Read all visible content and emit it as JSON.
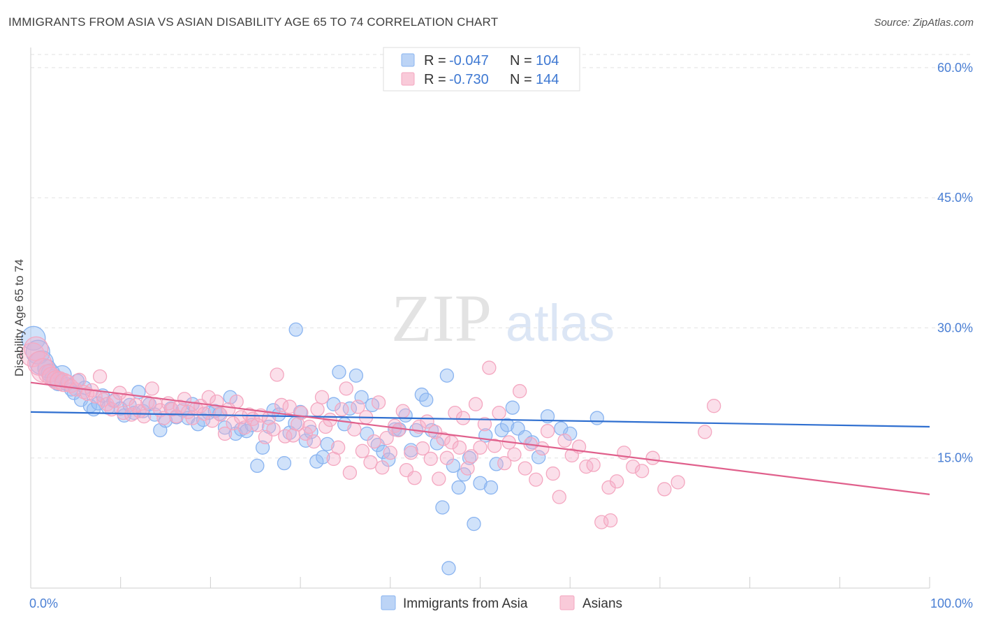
{
  "title": "IMMIGRANTS FROM ASIA VS ASIAN DISABILITY AGE 65 TO 74 CORRELATION CHART",
  "source": "Source: ZipAtlas.com",
  "watermark": {
    "zip": "ZIP",
    "atlas": "atlas"
  },
  "legend": {
    "rows": [
      {
        "r_label": "R =",
        "r_value": "-0.047",
        "n_label": "N =",
        "n_value": "104",
        "color": "#8ab4f0"
      },
      {
        "r_label": "R =",
        "r_value": "-0.730",
        "n_label": "N =",
        "n_value": "144",
        "color": "#f4a7c0"
      }
    ]
  },
  "bottom_legend": {
    "items": [
      {
        "label": "Immigrants from Asia",
        "color": "#8ab4f0"
      },
      {
        "label": "Asians",
        "color": "#f4a7c0"
      }
    ]
  },
  "chart_data": {
    "type": "scatter",
    "title": "IMMIGRANTS FROM ASIA VS ASIAN DISABILITY AGE 65 TO 74 CORRELATION CHART",
    "xlabel": "",
    "ylabel": "Disability Age 65 to 74",
    "xlim": [
      0,
      100
    ],
    "ylim": [
      0,
      62
    ],
    "x_ticks": [
      0,
      100
    ],
    "x_tick_labels": [
      "0.0%",
      "100.0%"
    ],
    "y_ticks": [
      15,
      30,
      45,
      60
    ],
    "y_tick_labels": [
      "15.0%",
      "30.0%",
      "45.0%",
      "60.0%"
    ],
    "grid": "horizontal dashed",
    "legend_position": "top-center",
    "series": [
      {
        "name": "Immigrants from Asia",
        "color": "#8ab4f0",
        "line_color": "#2f6fd0",
        "trend": {
          "x": [
            0,
            100
          ],
          "y": [
            20.3,
            18.6
          ]
        },
        "points": [
          [
            0.3,
            28.8
          ],
          [
            0.8,
            27.2
          ],
          [
            1.2,
            26.0
          ],
          [
            1.8,
            25.3
          ],
          [
            2.2,
            24.8
          ],
          [
            2.6,
            24.2
          ],
          [
            3.1,
            23.8
          ],
          [
            3.5,
            24.6
          ],
          [
            4.0,
            23.5
          ],
          [
            4.5,
            22.9
          ],
          [
            4.8,
            22.5
          ],
          [
            5.2,
            23.9
          ],
          [
            5.6,
            21.7
          ],
          [
            6.0,
            23.1
          ],
          [
            6.6,
            21.0
          ],
          [
            7.0,
            20.6
          ],
          [
            7.5,
            21.3
          ],
          [
            8.0,
            22.2
          ],
          [
            8.6,
            20.8
          ],
          [
            9.2,
            21.6
          ],
          [
            10.0,
            20.7
          ],
          [
            10.4,
            19.9
          ],
          [
            11.0,
            21.1
          ],
          [
            11.5,
            20.2
          ],
          [
            12.0,
            22.6
          ],
          [
            12.5,
            20.4
          ],
          [
            13.2,
            21.2
          ],
          [
            13.8,
            20.0
          ],
          [
            14.4,
            18.2
          ],
          [
            15.0,
            19.3
          ],
          [
            15.6,
            20.7
          ],
          [
            16.2,
            19.7
          ],
          [
            16.9,
            20.5
          ],
          [
            17.5,
            19.6
          ],
          [
            18.0,
            21.2
          ],
          [
            18.6,
            18.9
          ],
          [
            19.2,
            19.4
          ],
          [
            19.8,
            20.2
          ],
          [
            20.5,
            20.4
          ],
          [
            21.0,
            20.1
          ],
          [
            21.6,
            18.5
          ],
          [
            22.2,
            22.0
          ],
          [
            22.8,
            17.8
          ],
          [
            23.4,
            18.3
          ],
          [
            24.0,
            18.1
          ],
          [
            24.6,
            18.8
          ],
          [
            25.2,
            14.1
          ],
          [
            25.8,
            16.2
          ],
          [
            26.5,
            18.6
          ],
          [
            27.0,
            20.5
          ],
          [
            27.6,
            20.0
          ],
          [
            28.2,
            14.4
          ],
          [
            28.8,
            17.9
          ],
          [
            29.4,
            19.0
          ],
          [
            30.0,
            20.3
          ],
          [
            30.6,
            17.0
          ],
          [
            31.2,
            18.0
          ],
          [
            31.8,
            14.6
          ],
          [
            32.5,
            15.1
          ],
          [
            33.0,
            16.6
          ],
          [
            33.7,
            21.2
          ],
          [
            34.3,
            24.9
          ],
          [
            34.9,
            18.9
          ],
          [
            35.5,
            20.7
          ],
          [
            36.2,
            24.5
          ],
          [
            36.8,
            22.0
          ],
          [
            37.4,
            17.8
          ],
          [
            38.0,
            21.1
          ],
          [
            38.6,
            16.5
          ],
          [
            39.2,
            15.7
          ],
          [
            39.8,
            14.8
          ],
          [
            40.5,
            18.3
          ],
          [
            41.0,
            18.3
          ],
          [
            41.7,
            19.9
          ],
          [
            42.3,
            15.9
          ],
          [
            42.9,
            18.2
          ],
          [
            43.5,
            22.3
          ],
          [
            44.0,
            21.7
          ],
          [
            44.6,
            18.2
          ],
          [
            45.2,
            16.7
          ],
          [
            45.8,
            9.3
          ],
          [
            46.3,
            24.5
          ],
          [
            47.0,
            14.1
          ],
          [
            47.6,
            11.6
          ],
          [
            48.2,
            13.1
          ],
          [
            48.8,
            15.0
          ],
          [
            49.3,
            7.4
          ],
          [
            50.0,
            12.1
          ],
          [
            50.6,
            17.6
          ],
          [
            51.2,
            11.6
          ],
          [
            51.8,
            14.3
          ],
          [
            52.4,
            18.2
          ],
          [
            53.0,
            18.8
          ],
          [
            53.6,
            20.8
          ],
          [
            54.2,
            18.4
          ],
          [
            55.0,
            17.4
          ],
          [
            55.8,
            16.8
          ],
          [
            56.5,
            15.1
          ],
          [
            57.5,
            19.8
          ],
          [
            59.0,
            18.4
          ],
          [
            60.0,
            17.8
          ],
          [
            29.5,
            29.8
          ],
          [
            46.5,
            2.3
          ],
          [
            63.0,
            19.6
          ]
        ]
      },
      {
        "name": "Asians",
        "color": "#f4a7c0",
        "line_color": "#e0608c",
        "trend": {
          "x": [
            0,
            100
          ],
          "y": [
            23.7,
            10.8
          ]
        },
        "points": [
          [
            0.2,
            26.9
          ],
          [
            0.6,
            27.6
          ],
          [
            1.0,
            25.9
          ],
          [
            1.4,
            25.1
          ],
          [
            1.9,
            24.7
          ],
          [
            2.3,
            24.4
          ],
          [
            2.8,
            24.0
          ],
          [
            3.2,
            23.9
          ],
          [
            3.7,
            23.7
          ],
          [
            4.1,
            23.8
          ],
          [
            4.5,
            23.3
          ],
          [
            5.0,
            22.9
          ],
          [
            5.4,
            24.0
          ],
          [
            5.9,
            22.6
          ],
          [
            6.3,
            22.4
          ],
          [
            6.8,
            22.8
          ],
          [
            7.2,
            22.1
          ],
          [
            7.7,
            24.4
          ],
          [
            8.1,
            21.7
          ],
          [
            8.5,
            21.2
          ],
          [
            9.0,
            20.6
          ],
          [
            9.4,
            21.6
          ],
          [
            9.9,
            22.5
          ],
          [
            10.3,
            20.2
          ],
          [
            10.8,
            21.8
          ],
          [
            11.2,
            20.0
          ],
          [
            11.7,
            21.1
          ],
          [
            12.1,
            20.4
          ],
          [
            12.6,
            19.8
          ],
          [
            13.0,
            21.4
          ],
          [
            13.5,
            23.0
          ],
          [
            13.9,
            21.2
          ],
          [
            14.4,
            20.5
          ],
          [
            14.8,
            19.6
          ],
          [
            15.3,
            21.3
          ],
          [
            15.7,
            20.6
          ],
          [
            16.2,
            19.8
          ],
          [
            16.6,
            20.9
          ],
          [
            17.1,
            21.8
          ],
          [
            17.5,
            20.3
          ],
          [
            18.0,
            19.6
          ],
          [
            18.4,
            20.7
          ],
          [
            18.9,
            21.0
          ],
          [
            19.3,
            20.1
          ],
          [
            19.8,
            22.0
          ],
          [
            20.2,
            19.3
          ],
          [
            20.7,
            21.5
          ],
          [
            21.1,
            20.0
          ],
          [
            21.6,
            17.8
          ],
          [
            22.0,
            20.6
          ],
          [
            22.5,
            19.0
          ],
          [
            22.9,
            21.5
          ],
          [
            23.4,
            19.7
          ],
          [
            23.8,
            18.5
          ],
          [
            24.3,
            20.0
          ],
          [
            24.7,
            19.5
          ],
          [
            25.2,
            18.8
          ],
          [
            25.6,
            19.9
          ],
          [
            26.1,
            17.4
          ],
          [
            26.5,
            19.6
          ],
          [
            27.0,
            18.3
          ],
          [
            27.4,
            24.6
          ],
          [
            27.9,
            21.1
          ],
          [
            28.3,
            17.5
          ],
          [
            28.8,
            20.9
          ],
          [
            29.2,
            17.6
          ],
          [
            29.7,
            18.9
          ],
          [
            30.1,
            20.2
          ],
          [
            30.6,
            17.8
          ],
          [
            31.0,
            18.6
          ],
          [
            31.5,
            16.9
          ],
          [
            31.9,
            20.6
          ],
          [
            32.4,
            22.0
          ],
          [
            32.8,
            18.6
          ],
          [
            33.3,
            19.4
          ],
          [
            33.7,
            14.9
          ],
          [
            34.2,
            16.2
          ],
          [
            34.6,
            20.6
          ],
          [
            35.1,
            23.0
          ],
          [
            35.5,
            13.3
          ],
          [
            36.0,
            18.3
          ],
          [
            36.4,
            20.9
          ],
          [
            36.9,
            15.8
          ],
          [
            37.3,
            19.7
          ],
          [
            37.8,
            14.5
          ],
          [
            38.2,
            16.9
          ],
          [
            38.7,
            21.4
          ],
          [
            39.1,
            13.9
          ],
          [
            39.6,
            17.3
          ],
          [
            40.0,
            15.6
          ],
          [
            40.5,
            18.7
          ],
          [
            40.9,
            18.2
          ],
          [
            41.4,
            20.4
          ],
          [
            41.8,
            13.6
          ],
          [
            42.3,
            15.6
          ],
          [
            42.7,
            12.7
          ],
          [
            43.2,
            18.6
          ],
          [
            43.6,
            16.1
          ],
          [
            44.1,
            19.2
          ],
          [
            44.5,
            14.9
          ],
          [
            45.0,
            18.0
          ],
          [
            45.4,
            12.6
          ],
          [
            45.9,
            17.2
          ],
          [
            46.3,
            15.0
          ],
          [
            46.8,
            16.8
          ],
          [
            47.2,
            20.2
          ],
          [
            47.7,
            16.2
          ],
          [
            48.1,
            19.6
          ],
          [
            48.6,
            13.8
          ],
          [
            49.0,
            15.2
          ],
          [
            49.5,
            21.2
          ],
          [
            50.0,
            16.2
          ],
          [
            50.5,
            18.9
          ],
          [
            51.0,
            25.4
          ],
          [
            51.6,
            16.4
          ],
          [
            52.1,
            20.2
          ],
          [
            52.7,
            14.4
          ],
          [
            53.2,
            16.8
          ],
          [
            53.8,
            15.4
          ],
          [
            54.4,
            22.7
          ],
          [
            55.0,
            13.8
          ],
          [
            55.6,
            16.6
          ],
          [
            56.2,
            12.5
          ],
          [
            56.9,
            16.1
          ],
          [
            57.5,
            18.1
          ],
          [
            58.1,
            13.2
          ],
          [
            58.8,
            10.5
          ],
          [
            59.4,
            17.0
          ],
          [
            60.2,
            15.3
          ],
          [
            61.0,
            16.3
          ],
          [
            61.8,
            14.0
          ],
          [
            62.6,
            14.2
          ],
          [
            63.5,
            7.6
          ],
          [
            64.3,
            11.6
          ],
          [
            65.2,
            12.3
          ],
          [
            66.0,
            15.6
          ],
          [
            67.0,
            14.0
          ],
          [
            68.0,
            13.5
          ],
          [
            69.2,
            15.0
          ],
          [
            70.5,
            11.4
          ],
          [
            72.0,
            12.2
          ],
          [
            75.0,
            18.0
          ],
          [
            64.5,
            7.8
          ],
          [
            76.0,
            21.0
          ]
        ]
      }
    ]
  }
}
